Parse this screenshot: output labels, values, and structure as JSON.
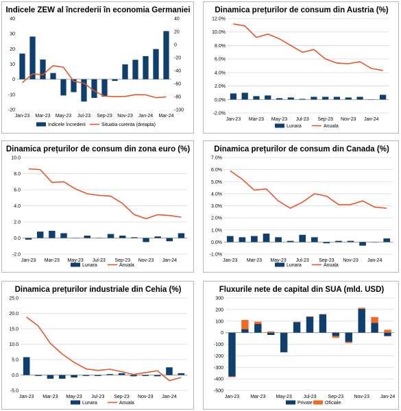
{
  "colors": {
    "bar": "#0f3f6e",
    "line": "#e8542a",
    "official": "#f26a22",
    "grid": "#d6d6d6",
    "axis": "#9a9a9a"
  },
  "chart_data": [
    {
      "type": "bar+line",
      "title": "Indicele ZEW al încrederii în economia Germaniei",
      "x": [
        "Jan-23",
        "Feb-23",
        "Mar-23",
        "Apr-23",
        "May-23",
        "Jun-23",
        "Jul-23",
        "Aug-23",
        "Sep-23",
        "Oct-23",
        "Nov-23",
        "Dec-23",
        "Jan-24",
        "Feb-24",
        "Mar-24"
      ],
      "x_tick_labels": [
        "Jan-23",
        "Mar-23",
        "May-23",
        "Jul-23",
        "Sep-23",
        "Nov-23",
        "Jan-24",
        "Mar-24"
      ],
      "ylim": [
        -20,
        40
      ],
      "y_ticks": [
        "-20",
        "-10",
        "0",
        "10",
        "20",
        "30",
        "40"
      ],
      "y2lim": [
        -100,
        40
      ],
      "y2_ticks": [
        "-100",
        "-80",
        "-60",
        "-40",
        "-20",
        "0",
        "20",
        "40"
      ],
      "grid": false,
      "legend_position": "bottom",
      "series": [
        {
          "name": "Indicele încrederii",
          "kind": "bar",
          "axis": "left",
          "values": [
            16.9,
            28.1,
            13.0,
            4.1,
            -10.7,
            -8.5,
            -14.7,
            -12.3,
            -11.4,
            -1.1,
            9.8,
            12.8,
            15.2,
            19.9,
            31.7
          ]
        },
        {
          "name": "Situatia curenta (dreapta)",
          "kind": "line",
          "axis": "right",
          "values": [
            -58.6,
            -45.1,
            -46.5,
            -32.5,
            -34.8,
            -56.5,
            -59.5,
            -71.3,
            -79.4,
            -79.9,
            -79.8,
            -77.1,
            -77.3,
            -81.7,
            -80.5
          ]
        }
      ]
    },
    {
      "type": "bar+line",
      "title": "Dinamica prețurilor de consum din Austria (%)",
      "x": [
        "Jan-23",
        "Feb-23",
        "Mar-23",
        "Apr-23",
        "May-23",
        "Jun-23",
        "Jul-23",
        "Aug-23",
        "Sep-23",
        "Oct-23",
        "Nov-23",
        "Dec-23",
        "Jan-24",
        "Feb-24"
      ],
      "x_tick_labels": [
        "Jan-23",
        "Mar-23",
        "May-23",
        "Jul-23",
        "Sep-23",
        "Nov-23",
        "Jan-24"
      ],
      "ylim": [
        -2,
        12
      ],
      "y_ticks": [
        "-2.0%",
        "0.0%",
        "2.0%",
        "4.0%",
        "6.0%",
        "8.0%",
        "10.0%",
        "12.0%"
      ],
      "grid": true,
      "legend_position": "bottom",
      "series": [
        {
          "name": "Lunara",
          "kind": "bar",
          "values": [
            0.9,
            1.0,
            0.5,
            0.6,
            0.2,
            0.3,
            0.1,
            0.4,
            0.4,
            0.4,
            0.3,
            0.4,
            0.0,
            0.7
          ]
        },
        {
          "name": "Anuala",
          "kind": "line",
          "values": [
            11.2,
            10.9,
            9.2,
            9.7,
            9.0,
            8.0,
            7.0,
            7.4,
            6.0,
            5.4,
            5.3,
            5.6,
            4.6,
            4.3
          ]
        }
      ]
    },
    {
      "type": "bar+line",
      "title": "Dinamica prețurilor de consum din zona euro (%)",
      "x": [
        "Jan-23",
        "Feb-23",
        "Mar-23",
        "Apr-23",
        "May-23",
        "Jun-23",
        "Jul-23",
        "Aug-23",
        "Sep-23",
        "Oct-23",
        "Nov-23",
        "Dec-23",
        "Jan-24",
        "Feb-24"
      ],
      "x_tick_labels": [
        "Jan-23",
        "Mar-23",
        "May-23",
        "Jul-23",
        "Sep-23",
        "Nov-23",
        "Jan-24"
      ],
      "ylim": [
        -2,
        10
      ],
      "y_ticks": [
        "-2.0",
        "0.0",
        "2.0",
        "4.0",
        "6.0",
        "8.0",
        "10.0"
      ],
      "grid": true,
      "legend_position": "bottom",
      "series": [
        {
          "name": "Lunara",
          "kind": "bar",
          "values": [
            -0.2,
            0.8,
            0.9,
            0.6,
            0.0,
            0.3,
            0.0,
            0.5,
            0.3,
            0.1,
            -0.5,
            0.2,
            -0.4,
            0.6
          ]
        },
        {
          "name": "Anuala",
          "kind": "line",
          "values": [
            8.6,
            8.5,
            6.9,
            7.0,
            6.1,
            5.5,
            5.3,
            5.2,
            4.3,
            2.9,
            2.4,
            2.9,
            2.8,
            2.6
          ]
        }
      ]
    },
    {
      "type": "bar+line",
      "title": "Dinamica prețurilor de consum din Canada (%)",
      "x": [
        "Jan-23",
        "Feb-23",
        "Mar-23",
        "Apr-23",
        "May-23",
        "Jun-23",
        "Jul-23",
        "Aug-23",
        "Sep-23",
        "Oct-23",
        "Nov-23",
        "Dec-23",
        "Jan-24",
        "Feb-24"
      ],
      "x_tick_labels": [
        "Jan-23",
        "Mar-23",
        "May-23",
        "Jul-23",
        "Sep-23",
        "Nov-23",
        "Jan-24"
      ],
      "ylim": [
        -1,
        7
      ],
      "y_ticks": [
        "-1.0%",
        "0.0%",
        "1.0%",
        "2.0%",
        "3.0%",
        "4.0%",
        "5.0%",
        "6.0%",
        "7.0%"
      ],
      "grid": true,
      "legend_position": "bottom",
      "series": [
        {
          "name": "Lunara",
          "kind": "bar",
          "values": [
            0.5,
            0.4,
            0.5,
            0.7,
            0.4,
            0.1,
            0.6,
            0.4,
            -0.1,
            0.1,
            0.1,
            -0.3,
            0.0,
            0.3
          ]
        },
        {
          "name": "Anuala",
          "kind": "line",
          "values": [
            5.9,
            5.2,
            4.3,
            4.4,
            3.4,
            2.8,
            3.3,
            4.0,
            3.8,
            3.1,
            3.1,
            3.4,
            2.9,
            2.8
          ]
        }
      ]
    },
    {
      "type": "bar+line",
      "title": "Dinamica prețurilor industriale din Cehia (%)",
      "x": [
        "Jan-23",
        "Feb-23",
        "Mar-23",
        "Apr-23",
        "May-23",
        "Jun-23",
        "Jul-23",
        "Aug-23",
        "Sep-23",
        "Oct-23",
        "Nov-23",
        "Dec-23",
        "Jan-24",
        "Feb-24"
      ],
      "x_tick_labels": [
        "Jan-23",
        "Mar-23",
        "May-23",
        "Jul-23",
        "Sep-23",
        "Nov-23",
        "Jan-24"
      ],
      "ylim": [
        -5,
        25
      ],
      "y_ticks": [
        "-5.0",
        "0.0",
        "5.0",
        "10.0",
        "15.0",
        "20.0",
        "25.0"
      ],
      "grid": true,
      "legend_position": "bottom",
      "series": [
        {
          "name": "Lunara",
          "kind": "bar",
          "values": [
            5.8,
            -0.3,
            -1.2,
            -1.2,
            -0.8,
            -0.3,
            -0.3,
            0.3,
            0.6,
            -0.4,
            -0.3,
            -0.4,
            2.5,
            0.6
          ]
        },
        {
          "name": "Anuala",
          "kind": "line",
          "values": [
            18.8,
            15.9,
            10.3,
            6.8,
            4.1,
            2.0,
            1.5,
            1.9,
            1.1,
            0.2,
            0.8,
            1.4,
            -1.8,
            -0.8
          ]
        }
      ]
    },
    {
      "type": "stacked-bar",
      "title": "Fluxurile nete de capital din SUA (mld. USD)",
      "x": [
        "Jan-23",
        "Feb-23",
        "Mar-23",
        "Apr-23",
        "May-23",
        "Jun-23",
        "Jul-23",
        "Aug-23",
        "Sep-23",
        "Oct-23",
        "Nov-23",
        "Dec-23",
        "Jan-24"
      ],
      "x_tick_labels": [
        "Jan-23",
        "Mar-23",
        "May-23",
        "Jul-23",
        "Sep-23",
        "Nov-23",
        "Jan-24"
      ],
      "ylim": [
        -500,
        300
      ],
      "y_ticks": [
        "-500",
        "-400",
        "-300",
        "-200",
        "-100",
        "0",
        "100",
        "200",
        "300"
      ],
      "grid": true,
      "legend_position": "bottom",
      "series": [
        {
          "name": "Private",
          "kind": "bar",
          "values": [
            -380,
            30,
            75,
            -20,
            -170,
            90,
            140,
            160,
            -30,
            -80,
            205,
            85,
            -30
          ]
        },
        {
          "name": "Oficiale",
          "kind": "bar",
          "values": [
            -5,
            80,
            20,
            10,
            0,
            5,
            0,
            0,
            -15,
            -10,
            10,
            50,
            25
          ]
        }
      ]
    }
  ]
}
